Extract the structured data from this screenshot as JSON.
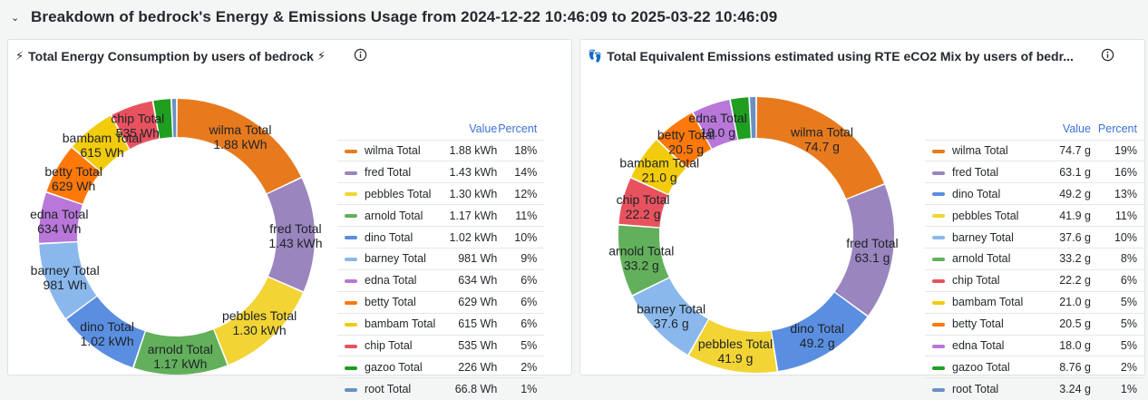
{
  "row": {
    "title": "Breakdown of bedrock's Energy & Emissions Usage from 2024-12-22 10:46:09 to 2025-03-22 10:46:09",
    "chevron": "⌄"
  },
  "panels": [
    {
      "title": "Total Energy Consumption by users of bedrock",
      "emoji_before": "⚡",
      "emoji_after": "⚡",
      "info_icon": "info-circle-icon",
      "legend_headers": {
        "value": "Value",
        "percent": "Percent"
      },
      "chart_data": {
        "type": "pie",
        "style": "donut",
        "title": "Total Energy Consumption by users of bedrock",
        "unit": "Wh",
        "series": [
          {
            "name": "wilma Total",
            "value": 1880,
            "display": "1.88 kWh",
            "percent": "18%",
            "color": "#e87a1e"
          },
          {
            "name": "fred Total",
            "value": 1430,
            "display": "1.43 kWh",
            "percent": "14%",
            "color": "#9a85bf"
          },
          {
            "name": "pebbles Total",
            "value": 1300,
            "display": "1.30 kWh",
            "percent": "12%",
            "color": "#f2d435"
          },
          {
            "name": "arnold Total",
            "value": 1170,
            "display": "1.17 kWh",
            "percent": "11%",
            "color": "#62b05b"
          },
          {
            "name": "dino Total",
            "value": 1020,
            "display": "1.02 kWh",
            "percent": "10%",
            "color": "#5a8ee0"
          },
          {
            "name": "barney Total",
            "value": 981,
            "display": "981 Wh",
            "percent": "9%",
            "color": "#8ab8ec"
          },
          {
            "name": "edna Total",
            "value": 634,
            "display": "634 Wh",
            "percent": "6%",
            "color": "#b877d9"
          },
          {
            "name": "betty Total",
            "value": 629,
            "display": "629 Wh",
            "percent": "6%",
            "color": "#ff780a"
          },
          {
            "name": "bambam Total",
            "value": 615,
            "display": "615 Wh",
            "percent": "6%",
            "color": "#f2cc0c"
          },
          {
            "name": "chip Total",
            "value": 535,
            "display": "535 Wh",
            "percent": "5%",
            "color": "#e8525f"
          },
          {
            "name": "gazoo Total",
            "value": 226,
            "display": "226 Wh",
            "percent": "2%",
            "color": "#1f9e1f"
          },
          {
            "name": "root Total",
            "value": 66.8,
            "display": "66.8 Wh",
            "percent": "1%",
            "color": "#6b90c4"
          }
        ]
      }
    },
    {
      "title": "Total Equivalent Emissions estimated using RTE eCO2 Mix by users of bedr...",
      "emoji_before": "👣",
      "emoji_after": "",
      "info_icon": "info-circle-icon",
      "legend_headers": {
        "value": "Value",
        "percent": "Percent"
      },
      "chart_data": {
        "type": "pie",
        "style": "donut",
        "title": "Total Equivalent Emissions estimated using RTE eCO2 Mix by users of bedrock",
        "unit": "g",
        "series": [
          {
            "name": "wilma Total",
            "value": 74.7,
            "display": "74.7 g",
            "percent": "19%",
            "color": "#e87a1e"
          },
          {
            "name": "fred Total",
            "value": 63.1,
            "display": "63.1 g",
            "percent": "16%",
            "color": "#9a85bf"
          },
          {
            "name": "dino Total",
            "value": 49.2,
            "display": "49.2 g",
            "percent": "13%",
            "color": "#5a8ee0"
          },
          {
            "name": "pebbles Total",
            "value": 41.9,
            "display": "41.9 g",
            "percent": "11%",
            "color": "#f2d435"
          },
          {
            "name": "barney Total",
            "value": 37.6,
            "display": "37.6 g",
            "percent": "10%",
            "color": "#8ab8ec"
          },
          {
            "name": "arnold Total",
            "value": 33.2,
            "display": "33.2 g",
            "percent": "8%",
            "color": "#62b05b"
          },
          {
            "name": "chip Total",
            "value": 22.2,
            "display": "22.2 g",
            "percent": "6%",
            "color": "#e8525f"
          },
          {
            "name": "bambam Total",
            "value": 21.0,
            "display": "21.0 g",
            "percent": "5%",
            "color": "#f2cc0c"
          },
          {
            "name": "betty Total",
            "value": 20.5,
            "display": "20.5 g",
            "percent": "5%",
            "color": "#ff780a"
          },
          {
            "name": "edna Total",
            "value": 18.0,
            "display": "18.0 g",
            "percent": "5%",
            "color": "#b877d9"
          },
          {
            "name": "gazoo Total",
            "value": 8.76,
            "display": "8.76 g",
            "percent": "2%",
            "color": "#1f9e1f"
          },
          {
            "name": "root Total",
            "value": 3.24,
            "display": "3.24 g",
            "percent": "1%",
            "color": "#6b90c4"
          }
        ]
      }
    }
  ]
}
